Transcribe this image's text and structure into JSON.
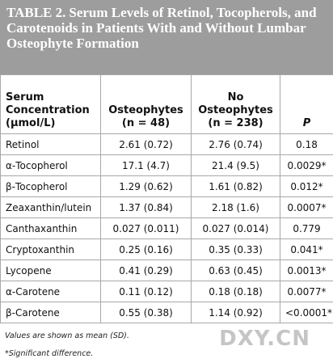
{
  "table": {
    "label": "TABLE 2.",
    "title": "Serum Levels of Retinol, Tocopherols, and Carotenoids in Patients With and Without Lumbar Osteophyte Formation",
    "columns": [
      "Serum Concentration (μmol/L)",
      "Osteophytes (n = 48)",
      "No Osteophytes (n = 238)",
      "P"
    ],
    "rows": [
      [
        "Retinol",
        "2.61 (0.72)",
        "2.76 (0.74)",
        "0.18"
      ],
      [
        "α-Tocopherol",
        "17.1 (4.7)",
        "21.4 (9.5)",
        "0.0029*"
      ],
      [
        "β-Tocopherol",
        "1.29 (0.62)",
        "1.61 (0.82)",
        "0.012*"
      ],
      [
        "Zeaxanthin/lutein",
        "1.37 (0.84)",
        "2.18 (1.6)",
        "0.0007*"
      ],
      [
        "Canthaxanthin",
        "0.027 (0.011)",
        "0.027 (0.014)",
        "0.779"
      ],
      [
        "Cryptoxanthin",
        "0.25 (0.16)",
        "0.35 (0.33)",
        "0.041*"
      ],
      [
        "Lycopene",
        "0.41 (0.29)",
        "0.63 (0.45)",
        "0.0013*"
      ],
      [
        "α-Carotene",
        "0.11 (0.12)",
        "0.18 (0.18)",
        "0.0077*"
      ],
      [
        "β-Carotene",
        "0.55 (0.38)",
        "1.14 (0.92)",
        "<0.0001*"
      ]
    ],
    "notes": [
      "Values are shown as mean (SD).",
      "*Significant difference."
    ],
    "watermark": "DXY.CN"
  }
}
